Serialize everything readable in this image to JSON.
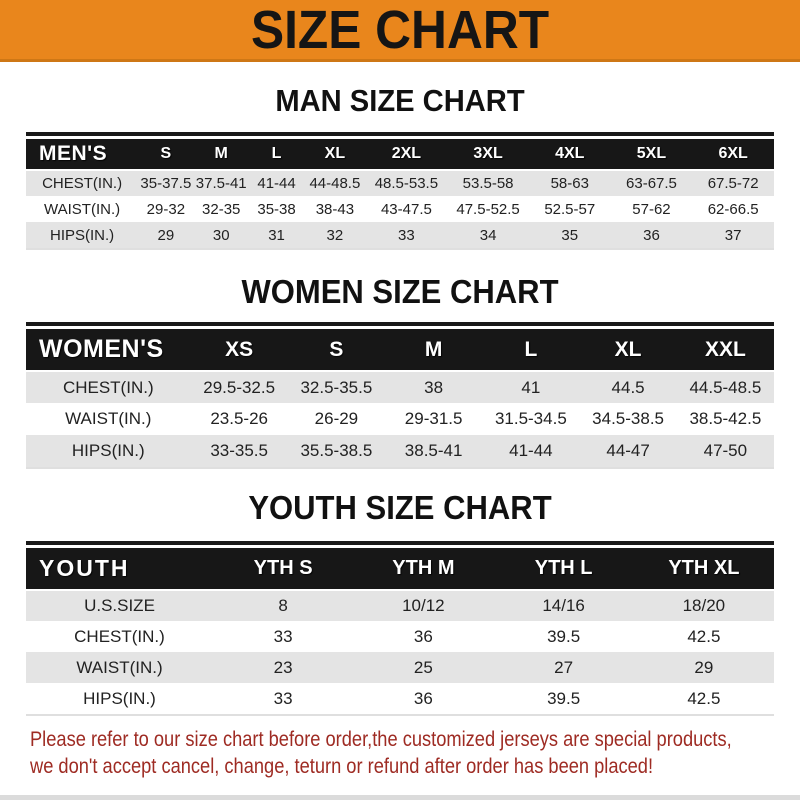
{
  "banner": {
    "title": "SIZE CHART"
  },
  "colors": {
    "banner_bg": "#E9861C",
    "banner_border": "#CE7715",
    "table_header_bg": "#171717",
    "table_header_text": "#FFFFFF",
    "row_alt_bg": "#E4E4E4",
    "note_text": "#9E2B23",
    "title_text": "#111111",
    "bottom_strip": "#DBDBDB"
  },
  "sections": [
    {
      "title": "MAN SIZE CHART",
      "table": {
        "header": [
          "MEN'S",
          "S",
          "M",
          "L",
          "XL",
          "2XL",
          "3XL",
          "4XL",
          "5XL",
          "6XL"
        ],
        "rows": [
          {
            "label": "CHEST(IN.)",
            "values": [
              "35-37.5",
              "37.5-41",
              "41-44",
              "44-48.5",
              "48.5-53.5",
              "53.5-58",
              "58-63",
              "63-67.5",
              "67.5-72"
            ]
          },
          {
            "label": "WAIST(IN.)",
            "values": [
              "29-32",
              "32-35",
              "35-38",
              "38-43",
              "43-47.5",
              "47.5-52.5",
              "52.5-57",
              "57-62",
              "62-66.5"
            ]
          },
          {
            "label": "HIPS(IN.)",
            "values": [
              "29",
              "30",
              "31",
              "32",
              "33",
              "34",
              "35",
              "36",
              "37"
            ]
          }
        ]
      }
    },
    {
      "title": "WOMEN SIZE CHART",
      "table": {
        "header": [
          "WOMEN'S",
          "XS",
          "S",
          "M",
          "L",
          "XL",
          "XXL"
        ],
        "rows": [
          {
            "label": "CHEST(IN.)",
            "values": [
              "29.5-32.5",
              "32.5-35.5",
              "38",
              "41",
              "44.5",
              "44.5-48.5"
            ]
          },
          {
            "label": "WAIST(IN.)",
            "values": [
              "23.5-26",
              "26-29",
              "29-31.5",
              "31.5-34.5",
              "34.5-38.5",
              "38.5-42.5"
            ]
          },
          {
            "label": "HIPS(IN.)",
            "values": [
              "33-35.5",
              "35.5-38.5",
              "38.5-41",
              "41-44",
              "44-47",
              "47-50"
            ]
          }
        ]
      }
    },
    {
      "title": "YOUTH SIZE CHART",
      "table": {
        "header": [
          "YOUTH",
          "YTH S",
          "YTH M",
          "YTH L",
          "YTH XL"
        ],
        "rows": [
          {
            "label": "U.S.SIZE",
            "values": [
              "8",
              "10/12",
              "14/16",
              "18/20"
            ]
          },
          {
            "label": "CHEST(IN.)",
            "values": [
              "33",
              "36",
              "39.5",
              "42.5"
            ]
          },
          {
            "label": "WAIST(IN.)",
            "values": [
              "23",
              "25",
              "27",
              "29"
            ]
          },
          {
            "label": "HIPS(IN.)",
            "values": [
              "33",
              "36",
              "39.5",
              "42.5"
            ]
          }
        ]
      }
    }
  ],
  "footer": {
    "lines": [
      "Please refer to our size chart before order,the customized jerseys are special products,",
      "we don't accept cancel, change, teturn or refund after order has been placed!"
    ]
  }
}
